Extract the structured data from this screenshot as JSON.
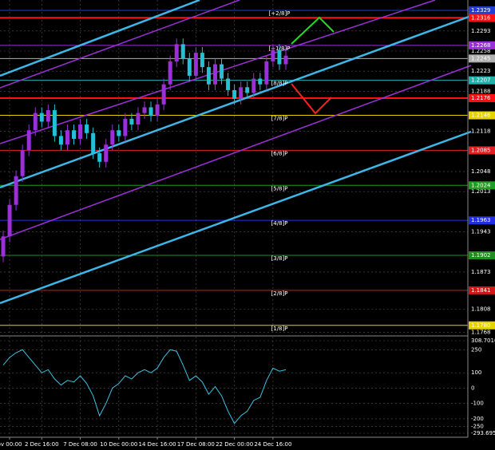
{
  "chart_data": [
    {
      "type": "candlestick",
      "open": [
        1.19,
        1.1935,
        1.199,
        1.204,
        1.2085,
        1.212,
        1.215,
        1.2135,
        1.2155,
        1.211,
        1.2095,
        1.212,
        1.2105,
        1.213,
        1.2115,
        1.208,
        1.2065,
        1.2095,
        1.212,
        1.211,
        1.214,
        1.213,
        1.215,
        1.216,
        1.2145,
        1.2165,
        1.22,
        1.224,
        1.227,
        1.2245,
        1.2215,
        1.2255,
        1.223,
        1.22,
        1.2235,
        1.221,
        1.219,
        1.2175,
        1.2195,
        1.2185,
        1.221,
        1.22,
        1.224,
        1.226,
        1.2235
      ],
      "high": [
        1.1945,
        1.2,
        1.205,
        1.2095,
        1.213,
        1.216,
        1.216,
        1.2165,
        1.2165,
        1.212,
        1.213,
        1.213,
        1.214,
        1.214,
        1.2125,
        1.209,
        1.2105,
        1.213,
        1.213,
        1.215,
        1.215,
        1.216,
        1.217,
        1.217,
        1.2175,
        1.221,
        1.225,
        1.228,
        1.228,
        1.2255,
        1.2265,
        1.2265,
        1.224,
        1.2245,
        1.2245,
        1.222,
        1.22,
        1.2205,
        1.2205,
        1.222,
        1.222,
        1.225,
        1.227,
        1.227,
        1.226
      ],
      "low": [
        1.189,
        1.1925,
        1.198,
        1.203,
        1.2075,
        1.211,
        1.2125,
        1.2125,
        1.21,
        1.2085,
        1.2085,
        1.2095,
        1.2095,
        1.2105,
        1.207,
        1.2055,
        1.2055,
        1.2085,
        1.21,
        1.21,
        1.212,
        1.212,
        1.214,
        1.2135,
        1.2135,
        1.2155,
        1.219,
        1.223,
        1.2235,
        1.2205,
        1.2205,
        1.222,
        1.219,
        1.219,
        1.22,
        1.218,
        1.2165,
        1.2165,
        1.2175,
        1.2175,
        1.219,
        1.219,
        1.223,
        1.2225,
        1.2225
      ],
      "close": [
        1.1935,
        1.199,
        1.204,
        1.2085,
        1.212,
        1.215,
        1.2135,
        1.2155,
        1.211,
        1.2095,
        1.212,
        1.2105,
        1.213,
        1.2115,
        1.208,
        1.2065,
        1.2095,
        1.212,
        1.211,
        1.214,
        1.213,
        1.215,
        1.216,
        1.2145,
        1.2165,
        1.22,
        1.224,
        1.227,
        1.2245,
        1.2215,
        1.2255,
        1.223,
        1.22,
        1.2235,
        1.221,
        1.219,
        1.2175,
        1.2195,
        1.2185,
        1.221,
        1.22,
        1.224,
        1.226,
        1.2235,
        1.225
      ],
      "up_color": "#9b30d9",
      "down_color": "#22c1d6",
      "ylim": [
        1.1763,
        1.2347
      ],
      "yticks": [
        1.2293,
        1.2258,
        1.2223,
        1.2188,
        1.2118,
        1.2048,
        1.2013,
        1.1943,
        1.1873,
        1.1808,
        1.1768
      ],
      "xlim": [
        -0.5,
        44.5
      ],
      "xticks": [
        {
          "value": 1,
          "label": "ov 00:00"
        },
        {
          "value": 6,
          "label": "2 Dec 16:00"
        },
        {
          "value": 12,
          "label": "7 Dec 08:00"
        },
        {
          "value": 18,
          "label": "10 Dec 00:00"
        },
        {
          "value": 24,
          "label": "14 Dec 16:00"
        },
        {
          "value": 30,
          "label": "17 Dec 08:00"
        },
        {
          "value": 36,
          "label": "22 Dec 00:00"
        },
        {
          "value": 42,
          "label": "24 Dec 16:00"
        }
      ],
      "grid": true,
      "levels": [
        {
          "name": "[+2/8]P",
          "value": 1.2329,
          "label": "1.2329",
          "color": "#1f3fd0",
          "width": 1
        },
        {
          "value": 1.2316,
          "label": "1.2316",
          "color": "#ff1010",
          "width": 2
        },
        {
          "name": "[+1/8]P",
          "value": 1.2268,
          "label": "1.2268",
          "color": "#9b30d9",
          "width": 1
        },
        {
          "value": 1.2245,
          "label": "1.2245",
          "color": "#b0b0b0",
          "width": 1
        },
        {
          "name": "[8/8]P",
          "value": 1.2207,
          "label": "1.2207",
          "color": "#20b2aa",
          "width": 1
        },
        {
          "value": 1.2176,
          "label": "1.2176",
          "color": "#ff1010",
          "width": 2
        },
        {
          "name": "[7/8]P",
          "value": 1.2146,
          "label": "1.2146",
          "color": "#e6d200",
          "width": 1
        },
        {
          "name": "[6/8]P",
          "value": 1.2085,
          "label": "1.2085",
          "color": "#e02020",
          "width": 1
        },
        {
          "name": "[5/8]P",
          "value": 1.2024,
          "label": "1.2024",
          "color": "#1e9e1e",
          "width": 1
        },
        {
          "name": "[4/8]P",
          "value": 1.1963,
          "label": "1.1963",
          "color": "#2030e0",
          "width": 1
        },
        {
          "name": "[3/8]P",
          "value": 1.1902,
          "label": "1.1902",
          "color": "#1e8e1e",
          "width": 1
        },
        {
          "name": "[2/8]P",
          "value": 1.1841,
          "label": "1.1841",
          "color": "#d01818",
          "width": 1
        },
        {
          "name": "[1/8]P",
          "value": 1.178,
          "label": "1.1780",
          "color": "#e6d200",
          "width": 1
        }
      ]
    },
    {
      "type": "line",
      "values": [
        150,
        200,
        230,
        250,
        200,
        150,
        100,
        120,
        60,
        20,
        50,
        40,
        80,
        30,
        -50,
        -180,
        -100,
        0,
        30,
        80,
        60,
        100,
        120,
        100,
        130,
        200,
        250,
        240,
        150,
        50,
        80,
        40,
        -40,
        10,
        -50,
        -150,
        -230,
        -180,
        -150,
        -80,
        -60,
        50,
        130,
        110,
        120
      ],
      "color": "#3ec3e0",
      "ylim": [
        -293.6956,
        308.7016
      ],
      "yticks": [
        308.7016,
        250,
        100,
        0,
        -100,
        -200,
        -250,
        -293.6956
      ],
      "xlim": [
        -0.5,
        44.5
      ]
    }
  ]
}
